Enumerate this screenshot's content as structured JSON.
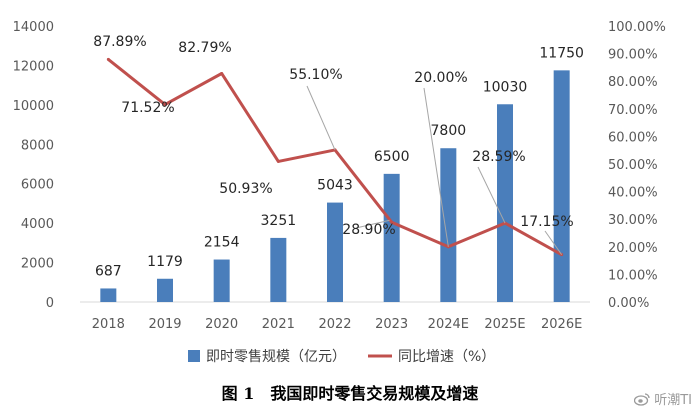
{
  "chart_data": {
    "type": "bar+line",
    "categories": [
      "2018",
      "2019",
      "2020",
      "2021",
      "2022",
      "2023",
      "2024E",
      "2025E",
      "2026E"
    ],
    "series": [
      {
        "name": "即时零售规模（亿元）",
        "type": "bar",
        "axis": "left",
        "color": "#4a7ebb",
        "values": [
          687,
          1179,
          2154,
          3251,
          5043,
          6500,
          7800,
          10030,
          11750
        ],
        "labels": [
          "687",
          "1179",
          "2154",
          "3251",
          "5043",
          "6500",
          "7800",
          "10030",
          "11750"
        ]
      },
      {
        "name": "同比增速（%）",
        "type": "line",
        "axis": "right",
        "color": "#c0504d",
        "values": [
          87.89,
          71.52,
          82.79,
          50.93,
          55.1,
          28.9,
          20.0,
          28.59,
          17.15
        ],
        "labels": [
          "87.89%",
          "71.52%",
          "82.79%",
          "50.93%",
          "55.10%",
          "28.90%",
          "20.00%",
          "28.59%",
          "17.15%"
        ]
      }
    ],
    "left_axis": {
      "ylim": [
        0,
        14000
      ],
      "ticks": [
        "0",
        "2000",
        "4000",
        "6000",
        "8000",
        "10000",
        "12000",
        "14000"
      ]
    },
    "right_axis": {
      "ylim": [
        0,
        100
      ],
      "ticks": [
        "0.00%",
        "10.00%",
        "20.00%",
        "30.00%",
        "40.00%",
        "50.00%",
        "60.00%",
        "70.00%",
        "80.00%",
        "90.00%",
        "100.00%"
      ]
    },
    "grid": false,
    "legend_position": "bottom"
  },
  "caption": {
    "figure_no": "图 1",
    "title": "我国即时零售交易规模及增速"
  },
  "watermark": {
    "text": "听潮TI"
  }
}
